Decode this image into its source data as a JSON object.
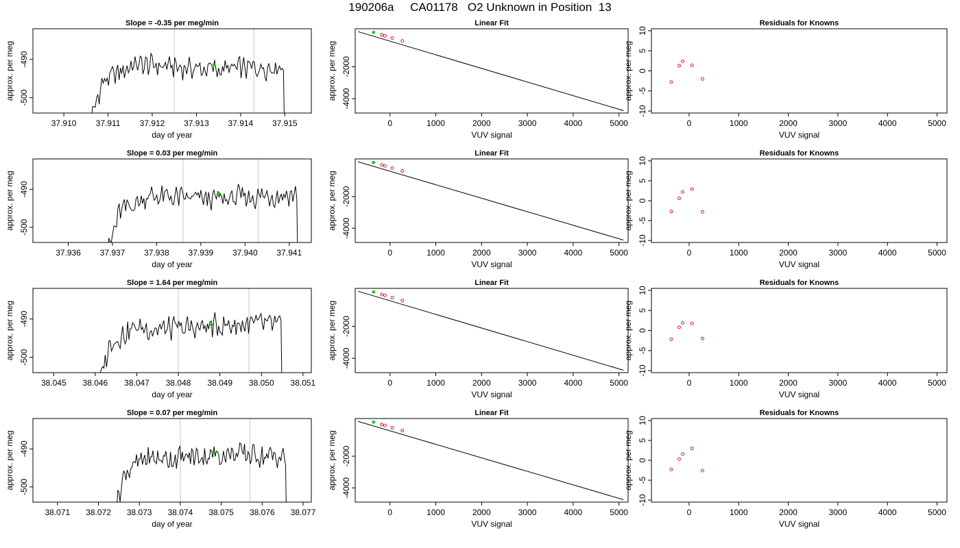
{
  "title": "190206a     CA01178   O2 Unknown in Position  13",
  "chart_data": [
    {
      "type": "line",
      "title": "Slope =  -0.35  per meg/min",
      "xlabel": "day of year",
      "ylabel": "approx. per meg",
      "xlim": [
        37.9093,
        37.9156
      ],
      "ylim": [
        -504,
        -482
      ],
      "xticks": [
        37.91,
        37.911,
        37.912,
        37.913,
        37.914,
        37.915
      ],
      "xtick_labels": [
        "37.910",
        "37.911",
        "37.912",
        "37.913",
        "37.914",
        "37.915"
      ],
      "yticks": [
        -490,
        -500
      ],
      "ytick_labels": [
        "-490",
        "-500"
      ],
      "start": 37.9105,
      "end": 37.915,
      "vlines": [
        37.9125,
        37.9143
      ],
      "highlight_point": {
        "x": 37.9134,
        "y": -491.3
      }
    },
    {
      "type": "line",
      "title": "Slope =  0.03  per meg/min",
      "xlabel": "day of year",
      "ylabel": "approx. per meg",
      "xlim": [
        37.9352,
        37.9415
      ],
      "ylim": [
        -504,
        -482
      ],
      "xticks": [
        37.936,
        37.937,
        37.938,
        37.939,
        37.94,
        37.941
      ],
      "xtick_labels": [
        "37.936",
        "37.937",
        "37.938",
        "37.939",
        "37.940",
        "37.941"
      ],
      "yticks": [
        -490,
        -500
      ],
      "ytick_labels": [
        "-490",
        "-500"
      ],
      "start": 37.9368,
      "end": 37.9412,
      "vlines": [
        37.9386,
        37.9403
      ],
      "highlight_point": {
        "x": 37.9394,
        "y": -491.0
      }
    },
    {
      "type": "line",
      "title": "Slope =  1.64  per meg/min",
      "xlabel": "day of year",
      "ylabel": "approx. per meg",
      "xlim": [
        38.0445,
        38.0512
      ],
      "ylim": [
        -504,
        -482
      ],
      "xticks": [
        38.045,
        38.046,
        38.047,
        38.048,
        38.049,
        38.05,
        38.051
      ],
      "xtick_labels": [
        "38.045",
        "38.046",
        "38.047",
        "38.048",
        "38.049",
        "38.050",
        "38.051"
      ],
      "yticks": [
        -490,
        -500
      ],
      "ytick_labels": [
        "-490",
        "-500"
      ],
      "start": 38.046,
      "end": 38.0505,
      "vlines": [
        38.048,
        38.0497
      ],
      "highlight_point": {
        "x": 38.0488,
        "y": -491.5
      }
    },
    {
      "type": "line",
      "title": "Slope =  0.07  per meg/min",
      "xlabel": "day of year",
      "ylabel": "approx. per meg",
      "xlim": [
        38.0704,
        38.0772
      ],
      "ylim": [
        -504,
        -482
      ],
      "xticks": [
        38.071,
        38.072,
        38.073,
        38.074,
        38.075,
        38.076,
        38.077
      ],
      "xtick_labels": [
        "38.071",
        "38.072",
        "38.073",
        "38.074",
        "38.075",
        "38.076",
        "38.077"
      ],
      "yticks": [
        -490,
        -500
      ],
      "ytick_labels": [
        "-490",
        "-500"
      ],
      "start": 38.0723,
      "end": 38.0766,
      "vlines": [
        38.074,
        38.0757
      ],
      "highlight_point": {
        "x": 38.0748,
        "y": -491.0
      }
    },
    {
      "type": "scatter",
      "title": "Linear Fit",
      "xlabel": "VUV signal",
      "ylabel": "approx. per meg",
      "xlim": [
        -760,
        5200
      ],
      "ylim": [
        -4900,
        380
      ],
      "xticks": [
        0,
        1000,
        2000,
        3000,
        4000,
        5000
      ],
      "xtick_labels": [
        "0",
        "1000",
        "2000",
        "3000",
        "4000",
        "5000"
      ],
      "yticks": [
        -2000,
        -4000
      ],
      "ytick_labels": [
        "-2000",
        "-4000"
      ],
      "fit_line": [
        [
          -700,
          200
        ],
        [
          5100,
          -4750
        ]
      ],
      "known_points": [
        [
          -180,
          0
        ],
        [
          -110,
          -60
        ],
        [
          50,
          -200
        ],
        [
          270,
          -380
        ]
      ],
      "unknown_point": [
        -360,
        155
      ]
    },
    {
      "type": "scatter",
      "title": "Linear Fit",
      "xlabel": "VUV signal",
      "ylabel": "approx. per meg",
      "xlim": [
        -760,
        5200
      ],
      "ylim": [
        -4900,
        380
      ],
      "xticks": [
        0,
        1000,
        2000,
        3000,
        4000,
        5000
      ],
      "xtick_labels": [
        "0",
        "1000",
        "2000",
        "3000",
        "4000",
        "5000"
      ],
      "yticks": [
        -2000,
        -4000
      ],
      "ytick_labels": [
        "-2000",
        "-4000"
      ],
      "fit_line": [
        [
          -700,
          200
        ],
        [
          5100,
          -4750
        ]
      ],
      "known_points": [
        [
          -180,
          0
        ],
        [
          -110,
          -60
        ],
        [
          50,
          -200
        ],
        [
          270,
          -380
        ]
      ],
      "unknown_point": [
        -360,
        155
      ]
    },
    {
      "type": "scatter",
      "title": "Linear Fit",
      "xlabel": "VUV signal",
      "ylabel": "approx. per meg",
      "xlim": [
        -760,
        5200
      ],
      "ylim": [
        -4900,
        380
      ],
      "xticks": [
        0,
        1000,
        2000,
        3000,
        4000,
        5000
      ],
      "xtick_labels": [
        "0",
        "1000",
        "2000",
        "3000",
        "4000",
        "5000"
      ],
      "yticks": [
        -2000,
        -4000
      ],
      "ytick_labels": [
        "-2000",
        "-4000"
      ],
      "fit_line": [
        [
          -700,
          200
        ],
        [
          5100,
          -4750
        ]
      ],
      "known_points": [
        [
          -180,
          0
        ],
        [
          -110,
          -60
        ],
        [
          50,
          -200
        ],
        [
          270,
          -380
        ]
      ],
      "unknown_point": [
        -360,
        155
      ]
    },
    {
      "type": "scatter",
      "title": "Linear Fit",
      "xlabel": "VUV signal",
      "ylabel": "approx. per meg",
      "xlim": [
        -760,
        5200
      ],
      "ylim": [
        -4900,
        380
      ],
      "xticks": [
        0,
        1000,
        2000,
        3000,
        4000,
        5000
      ],
      "xtick_labels": [
        "0",
        "1000",
        "2000",
        "3000",
        "4000",
        "5000"
      ],
      "yticks": [
        -2000,
        -4000
      ],
      "ytick_labels": [
        "-2000",
        "-4000"
      ],
      "fit_line": [
        [
          -700,
          200
        ],
        [
          5100,
          -4750
        ]
      ],
      "known_points": [
        [
          -180,
          0
        ],
        [
          -110,
          -60
        ],
        [
          50,
          -200
        ],
        [
          270,
          -380
        ]
      ],
      "unknown_point": [
        -360,
        155
      ]
    },
    {
      "type": "scatter",
      "title": "Residuals for Knowns",
      "xlabel": "VUV signal",
      "ylabel": "approx. per meg",
      "xlim": [
        -760,
        5200
      ],
      "ylim": [
        -10.5,
        10.5
      ],
      "xticks": [
        0,
        1000,
        2000,
        3000,
        4000,
        5000
      ],
      "xtick_labels": [
        "0",
        "1000",
        "2000",
        "3000",
        "4000",
        "5000"
      ],
      "yticks": [
        10,
        5,
        0,
        -5,
        -10
      ],
      "ytick_labels": [
        "10",
        "5",
        "0",
        "-5",
        "-10"
      ],
      "points": [
        [
          -360,
          -2.8
        ],
        [
          -200,
          1.3
        ],
        [
          -130,
          2.4
        ],
        [
          60,
          1.4
        ],
        [
          270,
          -2.0
        ]
      ]
    },
    {
      "type": "scatter",
      "title": "Residuals for Knowns",
      "xlabel": "VUV signal",
      "ylabel": "approx. per meg",
      "xlim": [
        -760,
        5200
      ],
      "ylim": [
        -10.5,
        10.5
      ],
      "xticks": [
        0,
        1000,
        2000,
        3000,
        4000,
        5000
      ],
      "xtick_labels": [
        "0",
        "1000",
        "2000",
        "3000",
        "4000",
        "5000"
      ],
      "yticks": [
        10,
        5,
        0,
        -5,
        -10
      ],
      "ytick_labels": [
        "10",
        "5",
        "0",
        "-5",
        "-10"
      ],
      "points": [
        [
          -360,
          -2.7
        ],
        [
          -200,
          0.6
        ],
        [
          -130,
          2.2
        ],
        [
          60,
          2.9
        ],
        [
          270,
          -2.8
        ]
      ]
    },
    {
      "type": "scatter",
      "title": "Residuals for Knowns",
      "xlabel": "VUV signal",
      "ylabel": "approx. per meg",
      "xlim": [
        -760,
        5200
      ],
      "ylim": [
        -10.5,
        10.5
      ],
      "xticks": [
        0,
        1000,
        2000,
        3000,
        4000,
        5000
      ],
      "xtick_labels": [
        "0",
        "1000",
        "2000",
        "3000",
        "4000",
        "5000"
      ],
      "yticks": [
        10,
        5,
        0,
        -5,
        -10
      ],
      "ytick_labels": [
        "10",
        "5",
        "0",
        "-5",
        "-10"
      ],
      "points": [
        [
          -360,
          -2.2
        ],
        [
          -200,
          0.8
        ],
        [
          -130,
          1.9
        ],
        [
          60,
          1.8
        ],
        [
          270,
          -2.0
        ]
      ]
    },
    {
      "type": "scatter",
      "title": "Residuals for Knowns",
      "xlabel": "VUV signal",
      "ylabel": "approx. per meg",
      "xlim": [
        -760,
        5200
      ],
      "ylim": [
        -10.5,
        10.5
      ],
      "xticks": [
        0,
        1000,
        2000,
        3000,
        4000,
        5000
      ],
      "xtick_labels": [
        "0",
        "1000",
        "2000",
        "3000",
        "4000",
        "5000"
      ],
      "yticks": [
        10,
        5,
        0,
        -5,
        -10
      ],
      "ytick_labels": [
        "10",
        "5",
        "0",
        "-5",
        "-10"
      ],
      "points": [
        [
          -360,
          -2.3
        ],
        [
          -200,
          0.3
        ],
        [
          -130,
          1.6
        ],
        [
          60,
          3.0
        ],
        [
          270,
          -2.6
        ]
      ]
    }
  ],
  "colors": {
    "trace": "#000000",
    "vline": "#c8c8c8",
    "unknown_point": "#00cc00",
    "known_point": "#cc2222"
  }
}
